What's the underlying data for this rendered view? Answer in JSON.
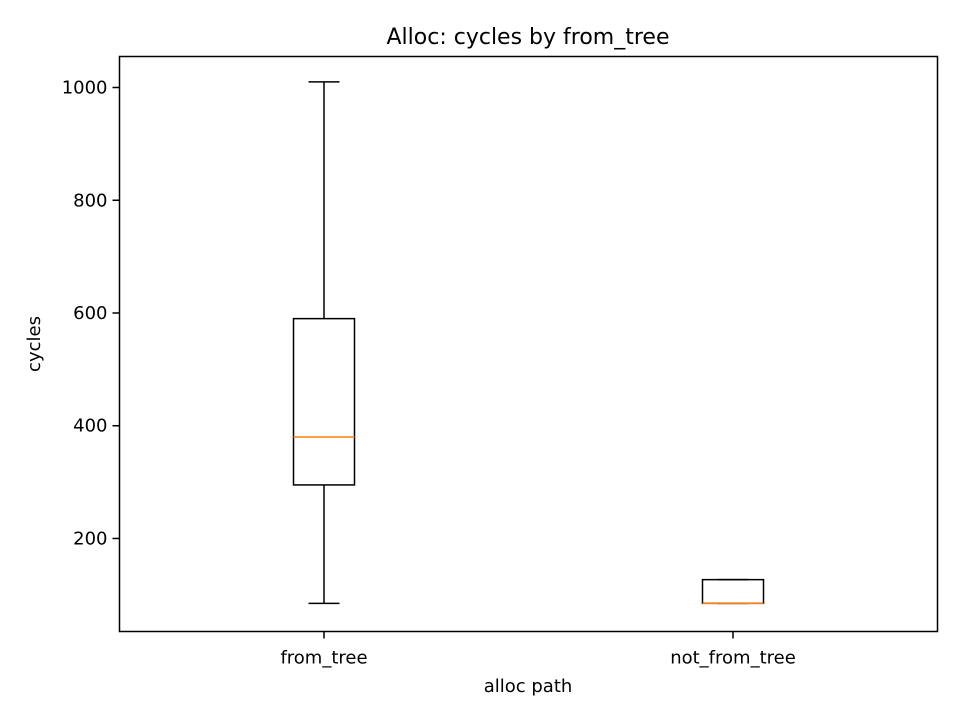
{
  "chart_data": {
    "type": "box",
    "title": "Alloc: cycles by from_tree",
    "xlabel": "alloc path",
    "ylabel": "cycles",
    "ylim": [
      35,
      1055
    ],
    "yticks": [
      200,
      400,
      600,
      800,
      1000
    ],
    "categories": [
      "from_tree",
      "not_from_tree"
    ],
    "boxes": [
      {
        "name": "from_tree",
        "whisker_low": 85,
        "q1": 295,
        "median": 380,
        "q3": 590,
        "whisker_high": 1010
      },
      {
        "name": "not_from_tree",
        "whisker_low": 85,
        "q1": 85,
        "median": 85,
        "q3": 127,
        "whisker_high": 127
      }
    ],
    "grid": false,
    "colors": {
      "box": "#000000",
      "median": "#ff7f0e"
    }
  }
}
